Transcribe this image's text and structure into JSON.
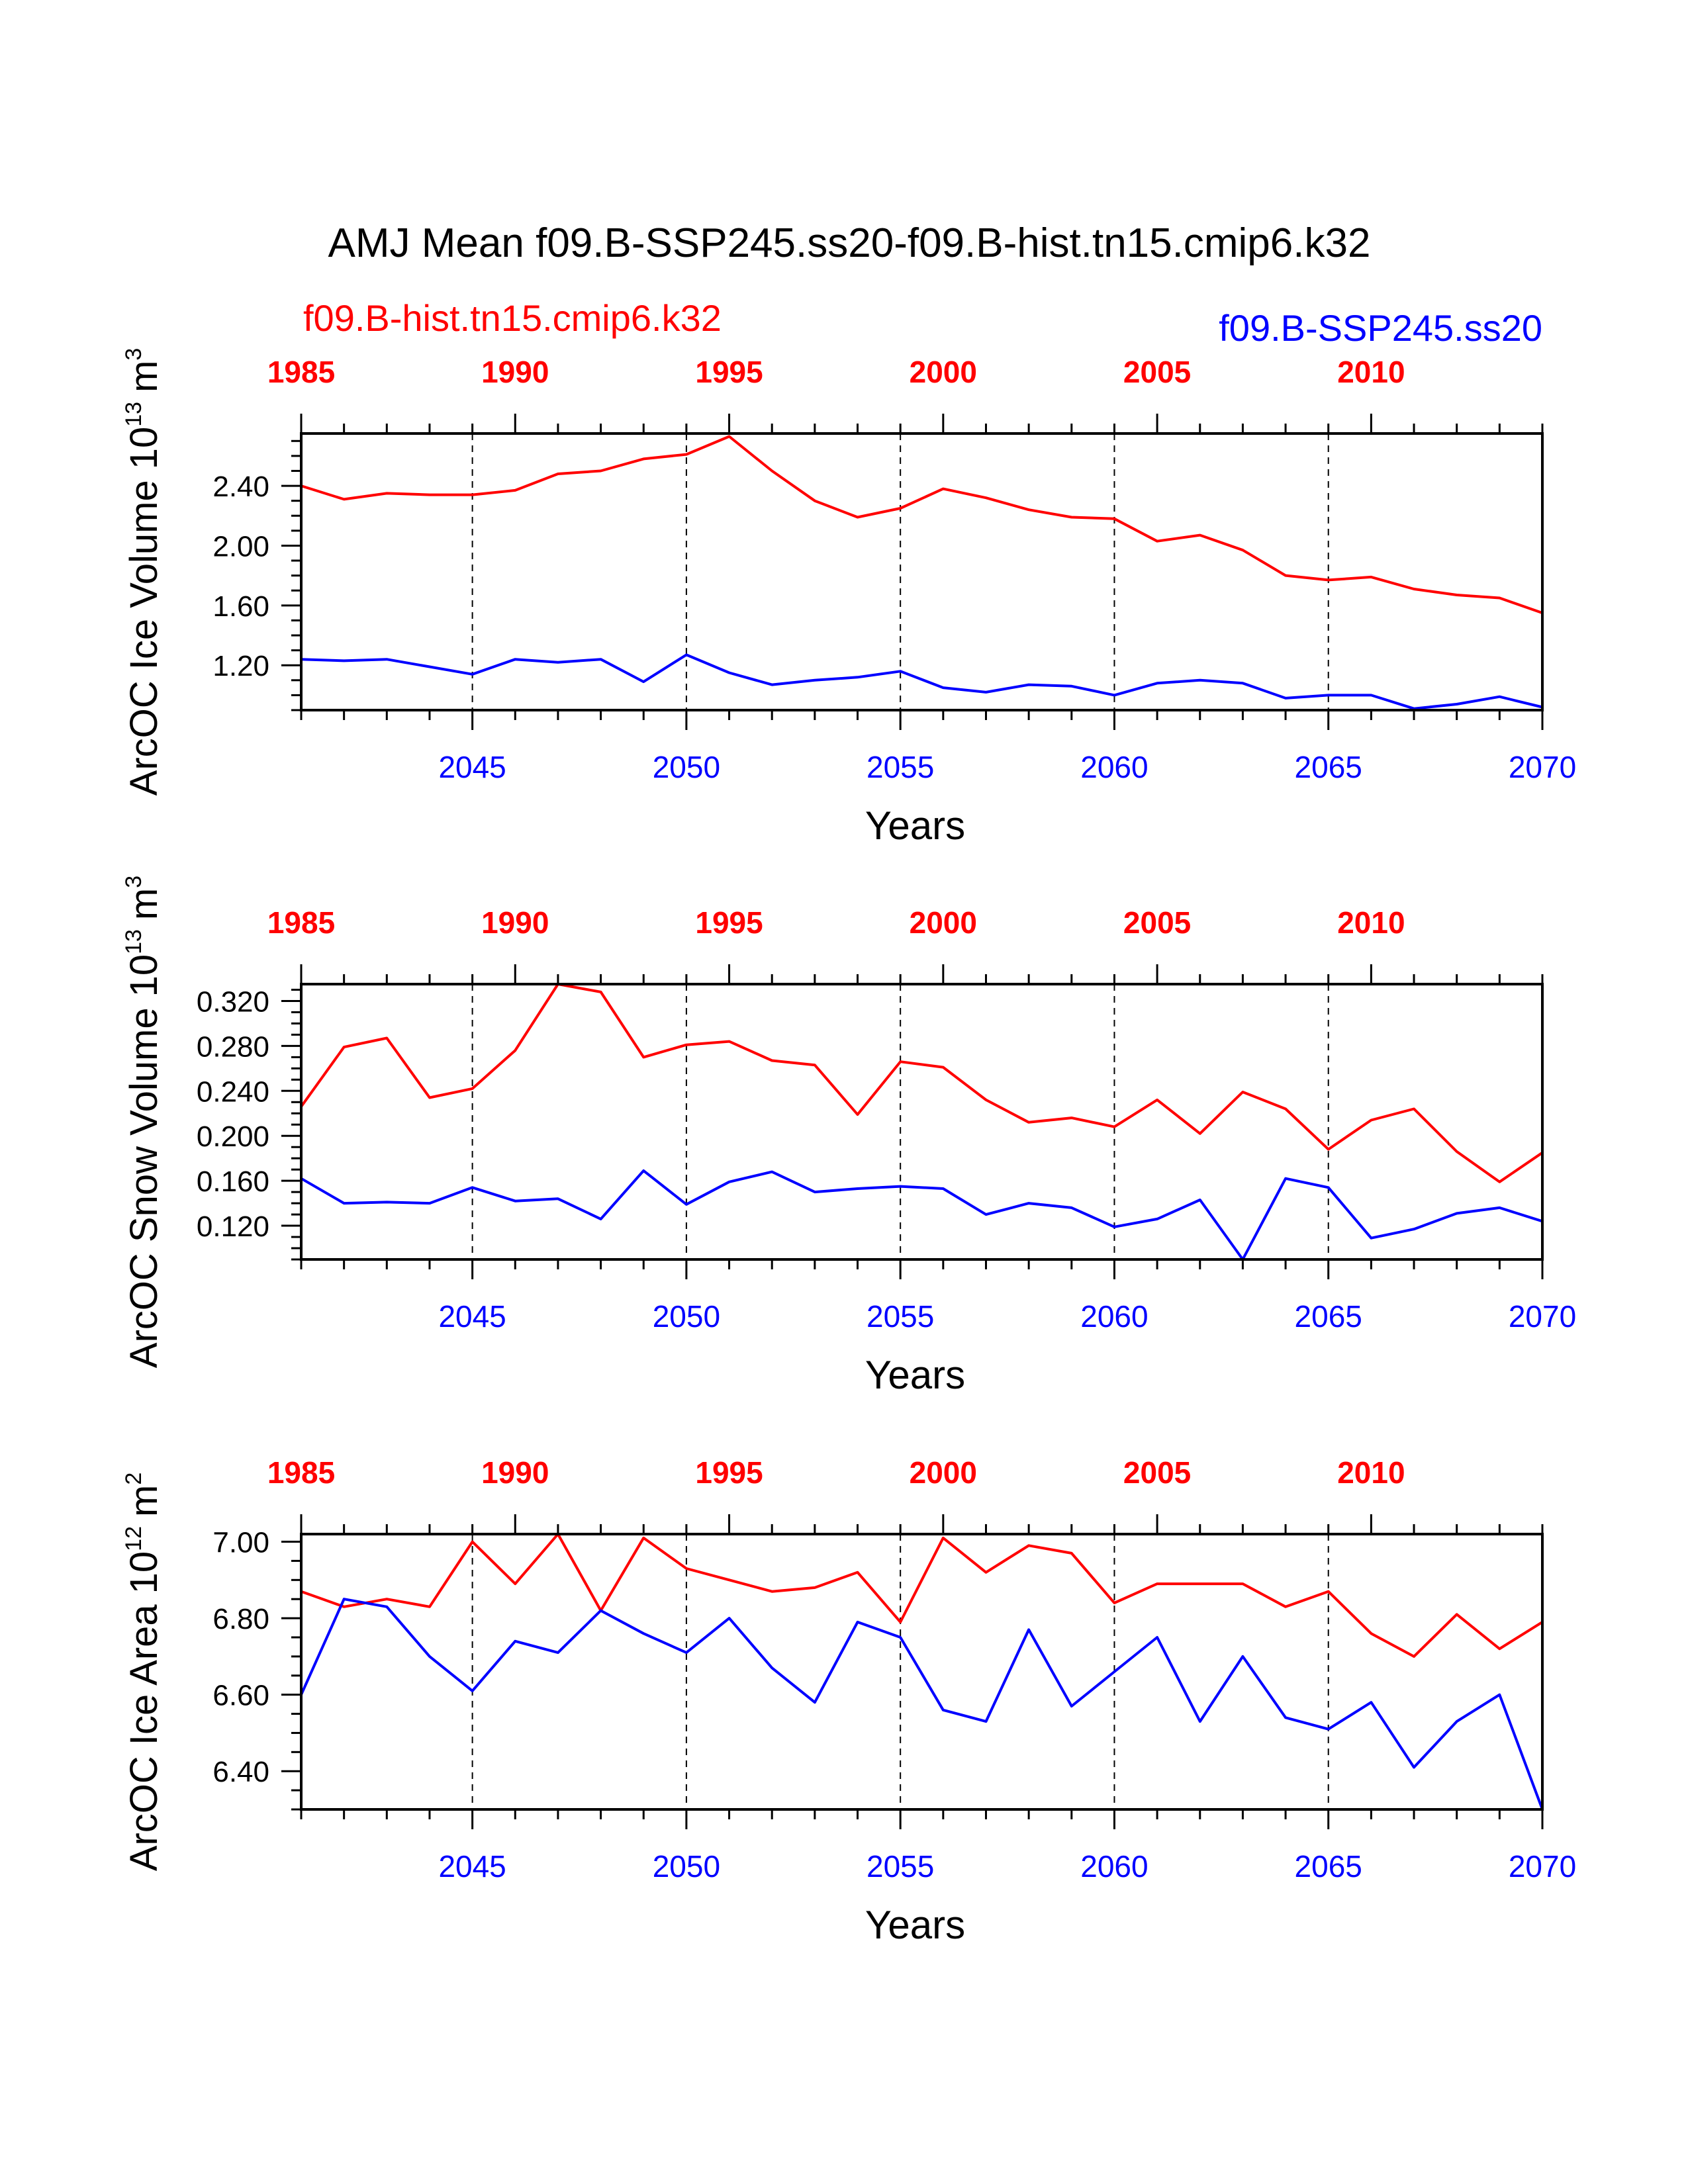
{
  "title": "AMJ Mean f09.B-SSP245.ss20-f09.B-hist.tn15.cmip6.k32",
  "legend_hist": "f09.B-hist.tn15.cmip6.k32",
  "legend_ssp": "f09.B-SSP245.ss20",
  "colors": {
    "hist": "#ff0000",
    "ssp": "#0000ff",
    "axis": "#000000"
  },
  "chart_data": [
    {
      "type": "line",
      "ylabel": "ArcOC Ice Volume",
      "yunit_base": "10",
      "yunit_exp": "13",
      "yunit_suffix": "m",
      "yunit_suffix_exp": "3",
      "xlabel": "Years",
      "ylim": [
        0.9,
        2.75
      ],
      "yticks": [
        1.2,
        1.6,
        2.0,
        2.4
      ],
      "ytick_labels": [
        "1.20",
        "1.60",
        "2.00",
        "2.40"
      ],
      "yminor_step": 0.1,
      "xlim": [
        2041,
        2070
      ],
      "xticks_bottom": [
        2045,
        2050,
        2055,
        2060,
        2065,
        2070
      ],
      "xtick_labels_bottom": [
        "2045",
        "2050",
        "2055",
        "2060",
        "2065",
        "2070"
      ],
      "xticks_top": [
        1985,
        1990,
        1995,
        2000,
        2005,
        2010
      ],
      "xtick_labels_top": [
        "1985",
        "1990",
        "1995",
        "2000",
        "2005",
        "2010"
      ],
      "x": [
        2041,
        2042,
        2043,
        2044,
        2045,
        2046,
        2047,
        2048,
        2049,
        2050,
        2051,
        2052,
        2053,
        2054,
        2055,
        2056,
        2057,
        2058,
        2059,
        2060,
        2061,
        2062,
        2063,
        2064,
        2065,
        2066,
        2067,
        2068,
        2069,
        2070
      ],
      "series": [
        {
          "key": "hist",
          "values": [
            2.4,
            2.31,
            2.35,
            2.34,
            2.34,
            2.37,
            2.48,
            2.5,
            2.58,
            2.61,
            2.73,
            2.5,
            2.3,
            2.19,
            2.25,
            2.38,
            2.32,
            2.24,
            2.19,
            2.18,
            2.03,
            2.07,
            1.97,
            1.8,
            1.77,
            1.79,
            1.71,
            1.67,
            1.65,
            1.55
          ]
        },
        {
          "key": "ssp",
          "values": [
            1.24,
            1.23,
            1.24,
            1.19,
            1.14,
            1.24,
            1.22,
            1.24,
            1.09,
            1.27,
            1.15,
            1.07,
            1.1,
            1.12,
            1.16,
            1.05,
            1.02,
            1.07,
            1.06,
            1.0,
            1.08,
            1.1,
            1.08,
            0.98,
            1.0,
            1.0,
            0.91,
            0.94,
            0.99,
            0.92
          ]
        }
      ]
    },
    {
      "type": "line",
      "ylabel": "ArcOC Snow Volume",
      "yunit_base": "10",
      "yunit_exp": "13",
      "yunit_suffix": "m",
      "yunit_suffix_exp": "3",
      "xlabel": "Years",
      "ylim": [
        0.09,
        0.335
      ],
      "yticks": [
        0.12,
        0.16,
        0.2,
        0.24,
        0.28,
        0.32
      ],
      "ytick_labels": [
        "0.120",
        "0.160",
        "0.200",
        "0.240",
        "0.280",
        "0.320"
      ],
      "yminor_step": 0.01,
      "xlim": [
        2041,
        2070
      ],
      "xticks_bottom": [
        2045,
        2050,
        2055,
        2060,
        2065,
        2070
      ],
      "xtick_labels_bottom": [
        "2045",
        "2050",
        "2055",
        "2060",
        "2065",
        "2070"
      ],
      "xticks_top": [
        1985,
        1990,
        1995,
        2000,
        2005,
        2010
      ],
      "xtick_labels_top": [
        "1985",
        "1990",
        "1995",
        "2000",
        "2005",
        "2010"
      ],
      "x": [
        2041,
        2042,
        2043,
        2044,
        2045,
        2046,
        2047,
        2048,
        2049,
        2050,
        2051,
        2052,
        2053,
        2054,
        2055,
        2056,
        2057,
        2058,
        2059,
        2060,
        2061,
        2062,
        2063,
        2064,
        2065,
        2066,
        2067,
        2068,
        2069,
        2070
      ],
      "series": [
        {
          "key": "hist",
          "values": [
            0.226,
            0.279,
            0.287,
            0.234,
            0.242,
            0.276,
            0.335,
            0.328,
            0.27,
            0.281,
            0.284,
            0.267,
            0.263,
            0.219,
            0.266,
            0.261,
            0.232,
            0.212,
            0.216,
            0.208,
            0.232,
            0.202,
            0.239,
            0.224,
            0.188,
            0.214,
            0.224,
            0.186,
            0.159,
            0.185
          ]
        },
        {
          "key": "ssp",
          "values": [
            0.162,
            0.14,
            0.141,
            0.14,
            0.154,
            0.142,
            0.144,
            0.126,
            0.169,
            0.139,
            0.159,
            0.168,
            0.15,
            0.153,
            0.155,
            0.153,
            0.13,
            0.14,
            0.136,
            0.119,
            0.126,
            0.143,
            0.09,
            0.162,
            0.154,
            0.109,
            0.117,
            0.131,
            0.136,
            0.124
          ]
        }
      ]
    },
    {
      "type": "line",
      "ylabel": "ArcOC Ice Area",
      "yunit_base": "10",
      "yunit_exp": "12",
      "yunit_suffix": "m",
      "yunit_suffix_exp": "2",
      "xlabel": "Years",
      "ylim": [
        6.3,
        7.02
      ],
      "yticks": [
        6.4,
        6.6,
        6.8,
        7.0
      ],
      "ytick_labels": [
        "6.40",
        "6.60",
        "6.80",
        "7.00"
      ],
      "yminor_step": 0.05,
      "xlim": [
        2041,
        2070
      ],
      "xticks_bottom": [
        2045,
        2050,
        2055,
        2060,
        2065,
        2070
      ],
      "xtick_labels_bottom": [
        "2045",
        "2050",
        "2055",
        "2060",
        "2065",
        "2070"
      ],
      "xticks_top": [
        1985,
        1990,
        1995,
        2000,
        2005,
        2010
      ],
      "xtick_labels_top": [
        "1985",
        "1990",
        "1995",
        "2000",
        "2005",
        "2010"
      ],
      "x": [
        2041,
        2042,
        2043,
        2044,
        2045,
        2046,
        2047,
        2048,
        2049,
        2050,
        2051,
        2052,
        2053,
        2054,
        2055,
        2056,
        2057,
        2058,
        2059,
        2060,
        2061,
        2062,
        2063,
        2064,
        2065,
        2066,
        2067,
        2068,
        2069,
        2070
      ],
      "series": [
        {
          "key": "hist",
          "values": [
            6.87,
            6.83,
            6.85,
            6.83,
            7.0,
            6.89,
            7.02,
            6.82,
            7.01,
            6.93,
            6.9,
            6.87,
            6.88,
            6.92,
            6.79,
            7.01,
            6.92,
            6.99,
            6.97,
            6.84,
            6.89,
            6.89,
            6.89,
            6.83,
            6.87,
            6.76,
            6.7,
            6.81,
            6.72,
            6.79
          ]
        },
        {
          "key": "ssp",
          "values": [
            6.6,
            6.85,
            6.83,
            6.7,
            6.61,
            6.74,
            6.71,
            6.82,
            6.76,
            6.71,
            6.8,
            6.67,
            6.58,
            6.79,
            6.75,
            6.56,
            6.53,
            6.77,
            6.57,
            6.66,
            6.75,
            6.53,
            6.7,
            6.54,
            6.51,
            6.58,
            6.41,
            6.53,
            6.6,
            6.3
          ]
        }
      ]
    }
  ]
}
